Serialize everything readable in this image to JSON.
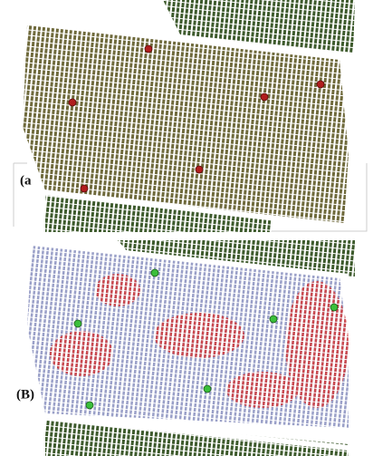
{
  "panels": [
    {
      "label": "(a"
    },
    {
      "label": "(B)"
    }
  ]
}
